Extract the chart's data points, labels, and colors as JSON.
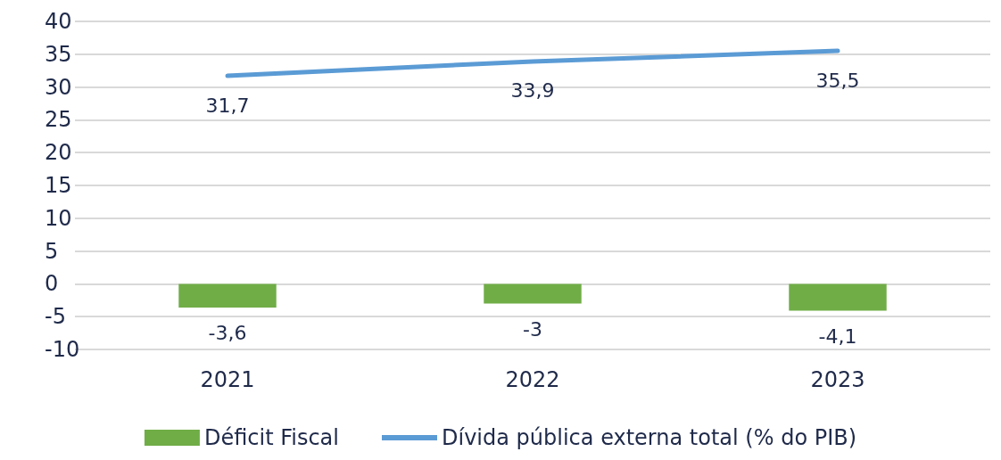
{
  "chart_data": {
    "type": "bar",
    "categories": [
      "2021",
      "2022",
      "2023"
    ],
    "series": [
      {
        "name": "Déficit Fiscal",
        "color": "#70ad47",
        "values": [
          -3.6,
          -3,
          -4.1
        ],
        "value_labels": [
          "-3,6",
          "-3",
          "-4,1"
        ]
      },
      {
        "name": "Dívida pública externa total (% do PIB)",
        "type": "line",
        "color": "#5b9bd5",
        "values": [
          31.7,
          33.9,
          35.5
        ],
        "value_labels": [
          "31,7",
          "33,9",
          "35,5"
        ],
        "marker": "none",
        "line_style": "solid"
      }
    ],
    "ylim": [
      -10,
      40
    ],
    "yticks": [
      -10,
      -5,
      0,
      5,
      10,
      15,
      20,
      25,
      30,
      35,
      40
    ],
    "grid": "y",
    "legend": "bottom"
  }
}
